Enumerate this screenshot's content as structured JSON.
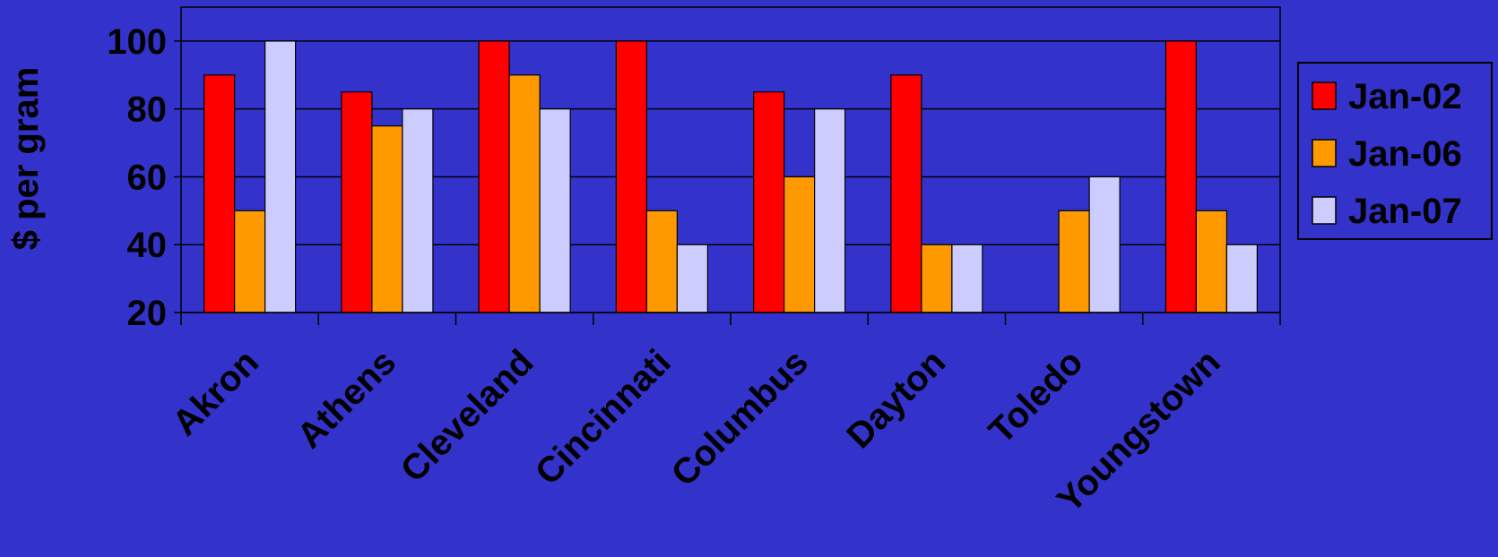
{
  "chart_data": {
    "type": "bar",
    "title": "",
    "xlabel": "",
    "ylabel": "$ per gram",
    "ylim": [
      20,
      110
    ],
    "yticks": [
      20,
      40,
      60,
      80,
      100
    ],
    "categories": [
      "Akron",
      "Athens",
      "Cleveland",
      "Cincinnati",
      "Columbus",
      "Dayton",
      "Toledo",
      "Youngstown"
    ],
    "series": [
      {
        "name": "Jan-02",
        "color": "#ff0000",
        "values": [
          90,
          85,
          100,
          100,
          85,
          90,
          null,
          100
        ]
      },
      {
        "name": "Jan-06",
        "color": "#ff9900",
        "values": [
          50,
          75,
          90,
          50,
          60,
          40,
          50,
          50
        ]
      },
      {
        "name": "Jan-07",
        "color": "#ccccff",
        "values": [
          100,
          80,
          80,
          40,
          80,
          40,
          60,
          40
        ]
      }
    ],
    "grid": true,
    "legend_position": "right",
    "colors": {
      "background": "#3333cc",
      "plot_border": "#000000",
      "gridline": "#000000",
      "text": "#000000"
    }
  }
}
